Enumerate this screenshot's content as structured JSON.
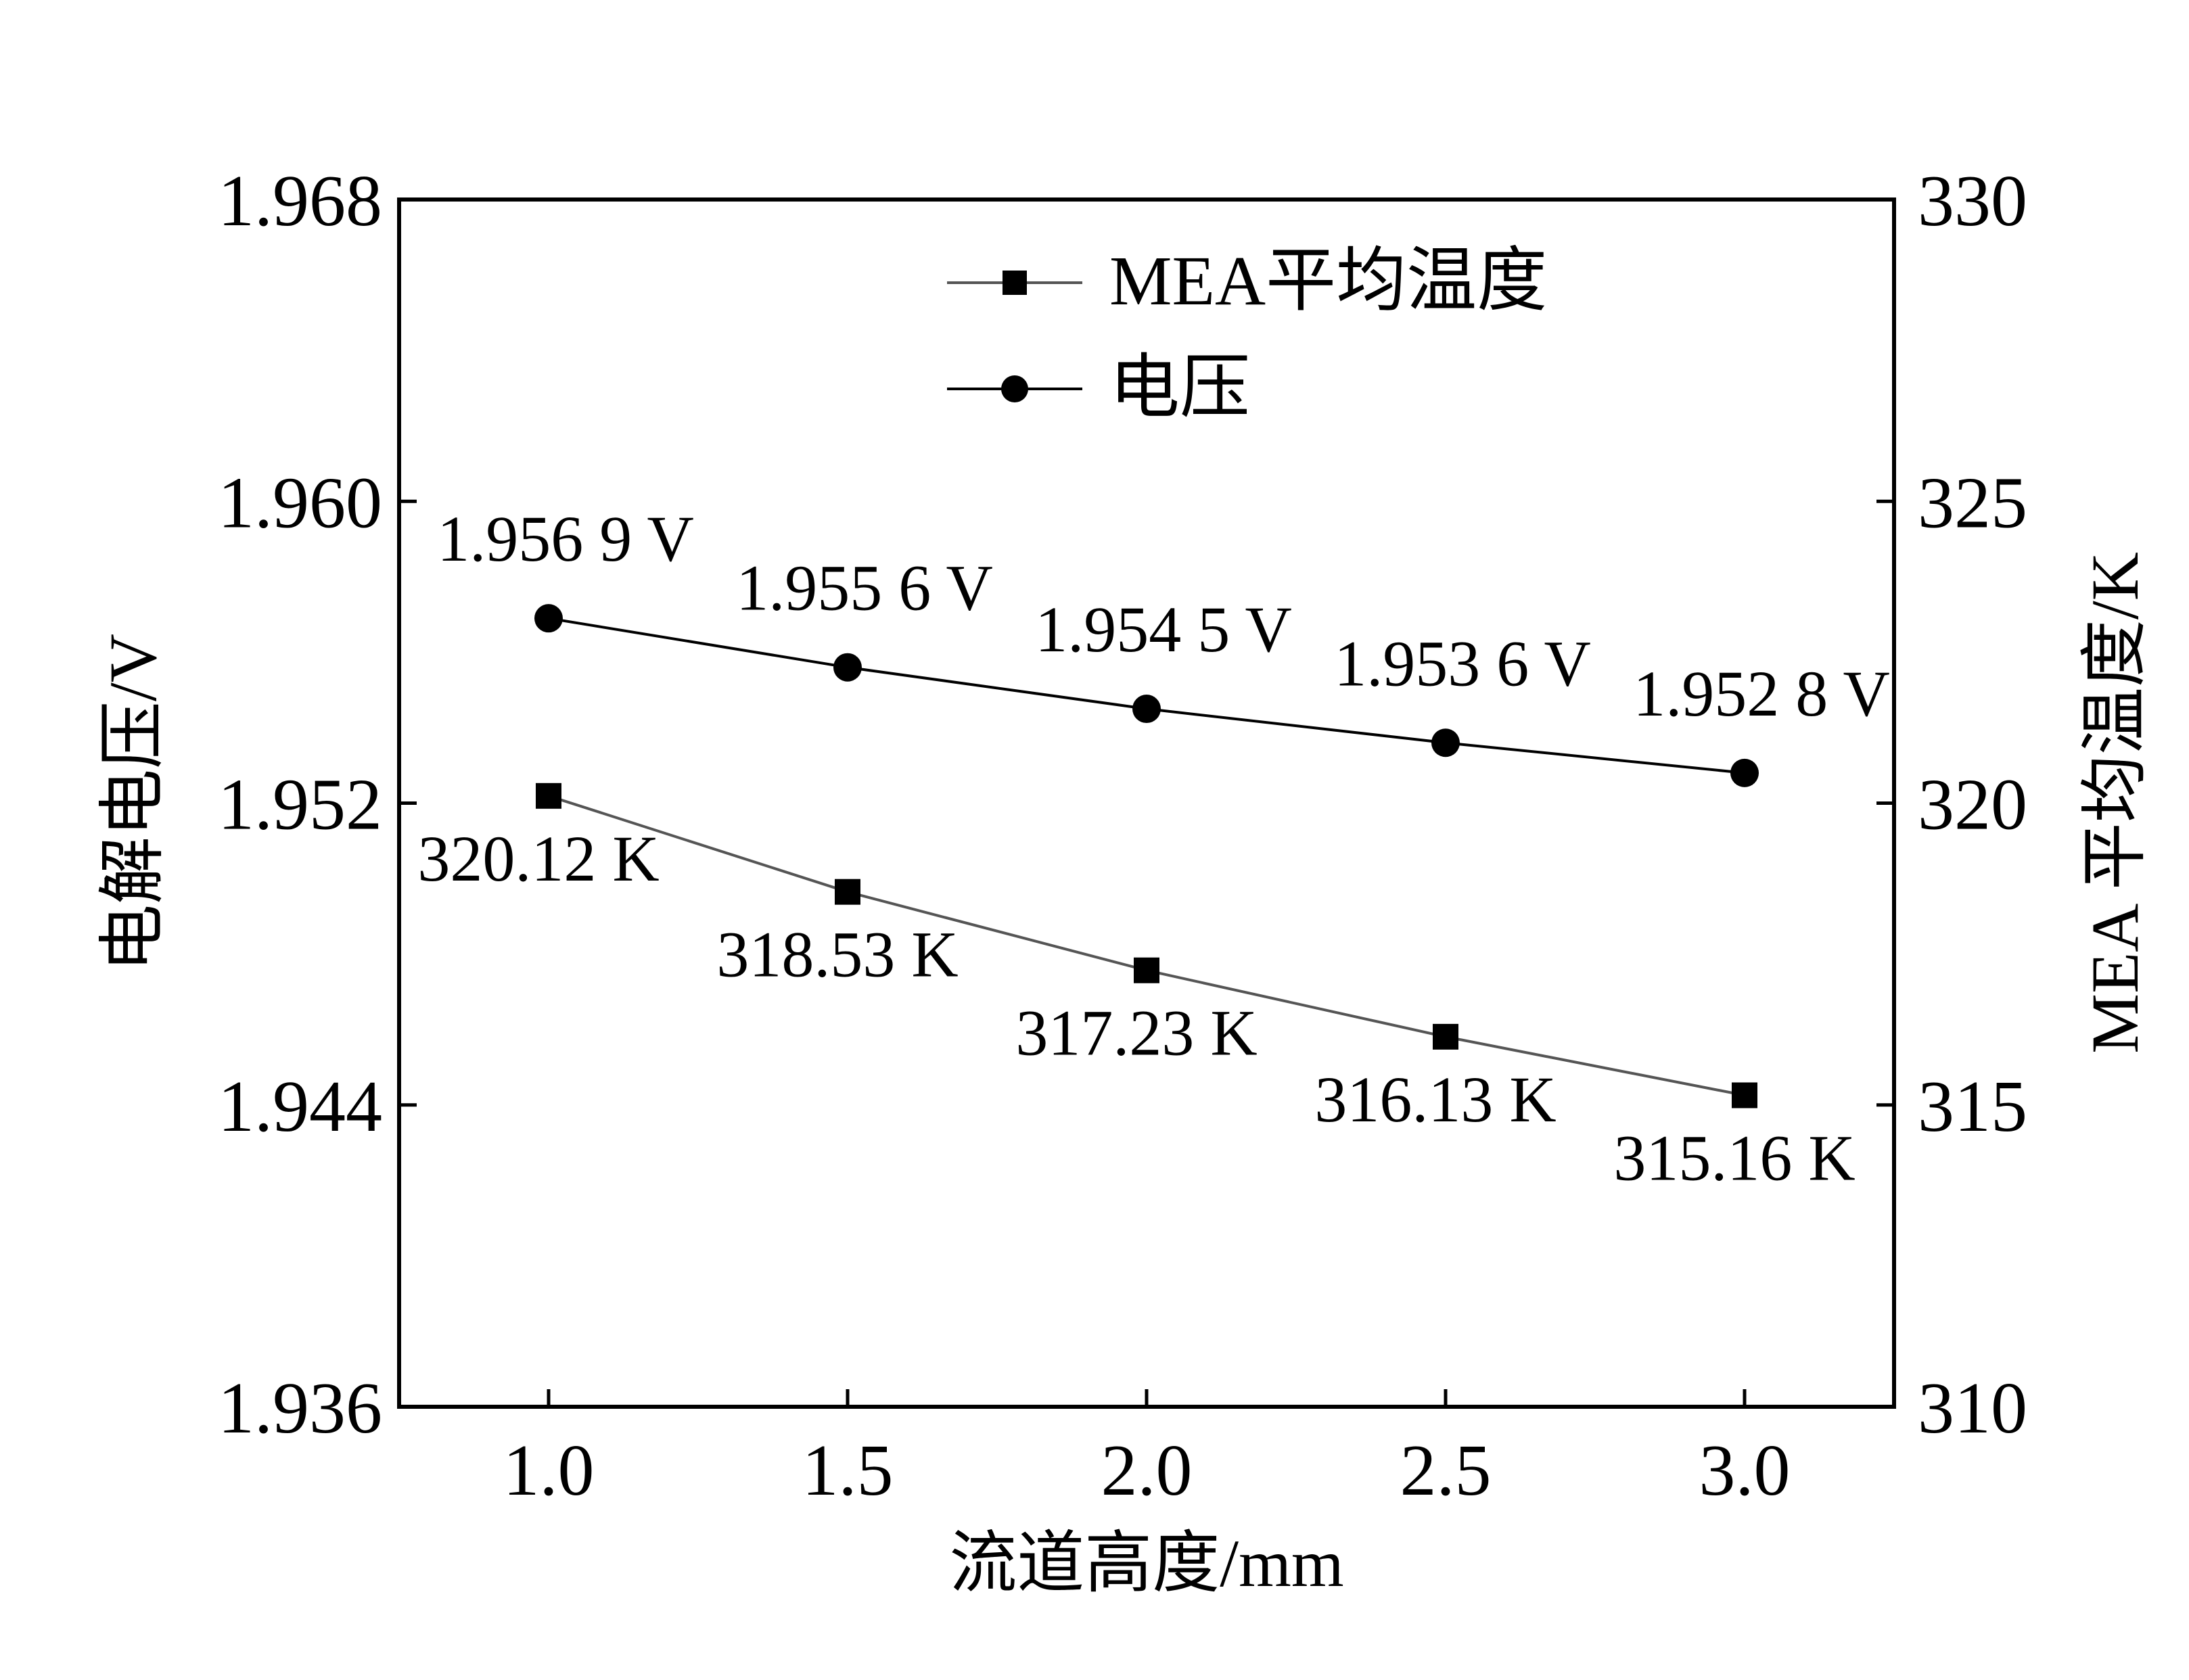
{
  "chart_data": {
    "type": "line",
    "title": "",
    "xlabel": "流道高度/mm",
    "ylabel_left": "电解电压/V",
    "ylabel_right": "MEA 平均温度/K",
    "x": [
      1.0,
      1.5,
      2.0,
      2.5,
      3.0
    ],
    "x_tick_labels": [
      "1.0",
      "1.5",
      "2.0",
      "2.5",
      "3.0"
    ],
    "xlim": [
      0.75,
      3.25
    ],
    "ylim_left": [
      1.936,
      1.968
    ],
    "ylim_right": [
      310,
      330
    ],
    "y_left_tick_labels": [
      "1.936",
      "1.944",
      "1.952",
      "1.960",
      "1.968"
    ],
    "y_right_tick_labels": [
      "310",
      "315",
      "320",
      "325",
      "330"
    ],
    "grid": false,
    "legend_position": "top-center",
    "series": [
      {
        "name": "MEA平均温度",
        "axis": "right",
        "marker": "square",
        "line_color": "#555555",
        "values": [
          320.12,
          318.53,
          317.23,
          316.13,
          315.16
        ],
        "labels": [
          "320.12 K",
          "318.53 K",
          "317.23 K",
          "316.13 K",
          "315.16 K"
        ]
      },
      {
        "name": "电压",
        "axis": "left",
        "marker": "circle",
        "line_color": "#000000",
        "values": [
          1.9569,
          1.9556,
          1.9545,
          1.9536,
          1.9528
        ],
        "labels": [
          "1.956 9 V",
          "1.955 6 V",
          "1.954 5 V",
          "1.953 6 V",
          "1.952 8 V"
        ]
      }
    ]
  }
}
